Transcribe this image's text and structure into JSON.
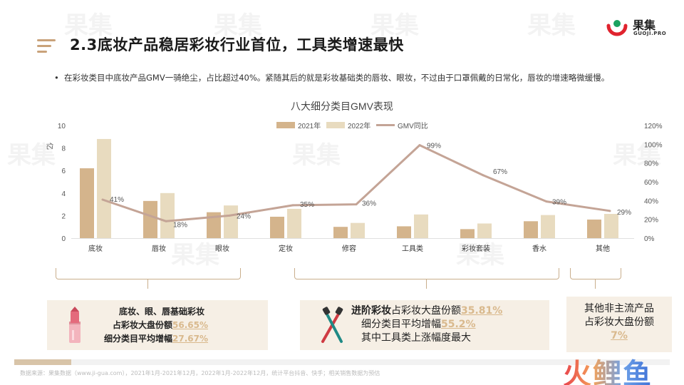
{
  "header": {
    "title": "2.3底妆产品稳居彩妆行业首位，工具类增速最快"
  },
  "brand": {
    "logo_cn": "果集",
    "logo_en": "GUOJI.PRO",
    "watermark": "果集",
    "corner_logo": "火鲤鱼"
  },
  "bullet": {
    "marker": "•",
    "text": "在彩妆类目中底妆产品GMV一骑绝尘，占比超过40%。紧随其后的就是彩妆基础类的唇妆、眼妆，不过由于口罩佩戴的日常化，唇妆的增速略微缓慢。"
  },
  "chart_data": {
    "type": "bar",
    "title": "八大细分类目GMV表现",
    "categories": [
      "底妆",
      "唇妆",
      "眼妆",
      "定妆",
      "修容",
      "工具类",
      "彩妆套装",
      "香水",
      "其他"
    ],
    "series": [
      {
        "name": "2021年",
        "type": "bar",
        "axis": "left",
        "color": "#d4b48c",
        "values": [
          6.2,
          3.3,
          2.3,
          1.9,
          1.0,
          1.05,
          0.8,
          1.5,
          1.65
        ]
      },
      {
        "name": "2022年",
        "type": "bar",
        "axis": "left",
        "color": "#e8dbbf",
        "values": [
          8.8,
          4.0,
          2.9,
          2.6,
          1.35,
          2.1,
          1.3,
          2.05,
          2.15
        ]
      },
      {
        "name": "GMV同比",
        "type": "line",
        "axis": "right",
        "color": "#c4a496",
        "values": [
          41,
          18,
          24,
          35,
          36,
          99,
          67,
          39,
          29
        ],
        "labels": [
          "41%",
          "18%",
          "24%",
          "35%",
          "36%",
          "99%",
          "67%",
          "39%",
          "29%"
        ]
      }
    ],
    "ylabel": "亿",
    "ylim": [
      0,
      10
    ],
    "yticks": [
      "0",
      "2",
      "4",
      "6",
      "8",
      "10"
    ],
    "y2lim": [
      0,
      120
    ],
    "y2ticks": [
      "0%",
      "20%",
      "40%",
      "60%",
      "80%",
      "100%",
      "120%"
    ],
    "legend_position": "top-center",
    "grid": false
  },
  "cards": {
    "basic": {
      "line1": "底妆、眼、唇基础彩妆",
      "line2_prefix": "占彩妆大盘份额",
      "line2_value": "56.65%",
      "line3_prefix": "细分类目平均增幅",
      "line3_value": "27.67%"
    },
    "advanced": {
      "line1_bold": "进阶彩妆",
      "line1_prefix": "占彩妆大盘份额",
      "line1_value": "35.81%",
      "line2_prefix": "细分类目平均增幅",
      "line2_value": "55.2%",
      "line3": "其中工具类上涨幅度最大"
    },
    "other": {
      "line1": "其他非主流产品",
      "line2": "占彩妆大盘份额",
      "line3": "7%"
    }
  },
  "footer": {
    "source": "数据来源：果集数据（www.ji-gua.com），2021年1月-2021年12月，2022年1月-2022年12月，统计平台抖音、快手；相关销售数据为预估"
  },
  "colors": {
    "accent": "#c9a27a",
    "bar_2021": "#d4b48c",
    "bar_2022": "#e8dbbf",
    "line": "#c4a496",
    "card_bg": "#f6efe5",
    "highlight": "#d9b98d"
  }
}
